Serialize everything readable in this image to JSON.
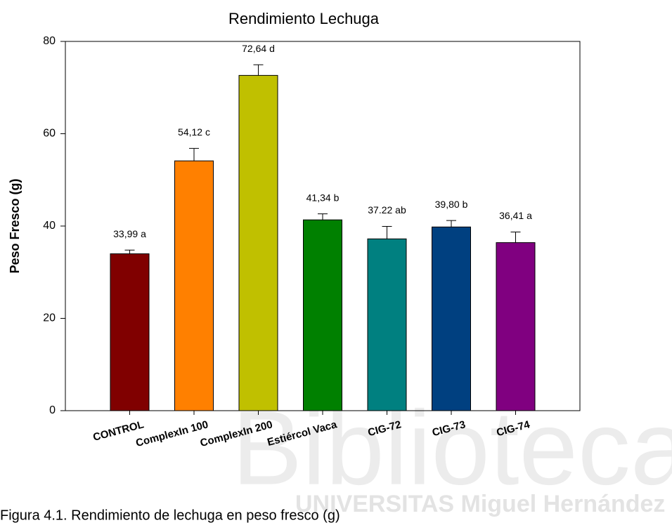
{
  "chart_data": {
    "type": "bar",
    "title": "Rendimiento Lechuga",
    "y_label": "Peso Fresco (g)",
    "categories": [
      "CONTROL",
      "ComplexIn 100",
      "ComplexIn 200",
      "Estiércol Vaca",
      "CIG-72",
      "CIG-73",
      "CIG-74"
    ],
    "values": [
      33.99,
      54.12,
      72.64,
      41.34,
      37.22,
      39.8,
      36.41
    ],
    "value_labels": [
      "33,99 a",
      "54,12 c",
      "72,64 d",
      "41,34 b",
      "37.22 ab",
      "39,80 b",
      "36,41 a"
    ],
    "errors": [
      0.8,
      2.7,
      2.3,
      1.3,
      2.7,
      1.4,
      2.3
    ],
    "colors": [
      "#800000",
      "#ff8000",
      "#c0c000",
      "#008000",
      "#008080",
      "#004080",
      "#800080"
    ],
    "ylim": [
      0,
      80
    ],
    "yticks": [
      0,
      20,
      40,
      60,
      80
    ],
    "grid": false
  },
  "watermark": {
    "main": "Biblioteca",
    "sub": "UNIVERSITAS Miguel Hernández"
  },
  "caption": "Figura 4.1. Rendimiento de lechuga en peso fresco (g)"
}
